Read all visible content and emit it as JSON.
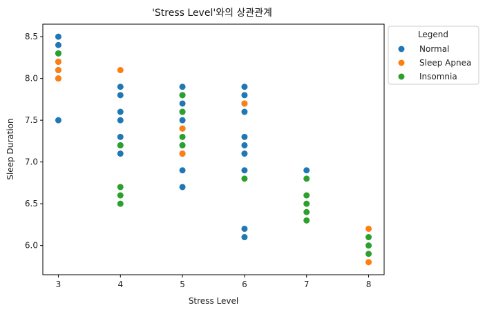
{
  "chart_data": {
    "type": "scatter",
    "title": "'Stress Level'와의 상관관계",
    "xlabel": "Stress Level",
    "ylabel": "Sleep Duration",
    "xlim": [
      2.75,
      8.25
    ],
    "ylim": [
      5.65,
      8.65
    ],
    "xticks": [
      3,
      4,
      5,
      6,
      7,
      8
    ],
    "yticks": [
      6.0,
      6.5,
      7.0,
      7.5,
      8.0,
      8.5
    ],
    "ytick_labels": [
      "6.0",
      "6.5",
      "7.0",
      "7.5",
      "8.0",
      "8.5"
    ],
    "legend": {
      "title": "Legend",
      "placement": "outside-right-top",
      "entries": [
        "Normal",
        "Sleep Apnea",
        "Insomnia"
      ]
    },
    "series": [
      {
        "name": "Normal",
        "color": "#1f77b4",
        "points": [
          [
            3,
            8.5
          ],
          [
            3,
            8.4
          ],
          [
            3,
            8.3
          ],
          [
            3,
            8.2
          ],
          [
            3,
            8.1
          ],
          [
            3,
            8.0
          ],
          [
            3,
            7.5
          ],
          [
            4,
            7.9
          ],
          [
            4,
            7.8
          ],
          [
            4,
            7.6
          ],
          [
            4,
            7.5
          ],
          [
            4,
            7.3
          ],
          [
            4,
            7.2
          ],
          [
            4,
            7.1
          ],
          [
            5,
            7.9
          ],
          [
            5,
            7.8
          ],
          [
            5,
            7.7
          ],
          [
            5,
            7.6
          ],
          [
            5,
            7.5
          ],
          [
            5,
            7.4
          ],
          [
            5,
            7.2
          ],
          [
            5,
            7.1
          ],
          [
            5,
            6.9
          ],
          [
            5,
            6.7
          ],
          [
            6,
            7.9
          ],
          [
            6,
            7.8
          ],
          [
            6,
            7.7
          ],
          [
            6,
            7.6
          ],
          [
            6,
            7.3
          ],
          [
            6,
            7.2
          ],
          [
            6,
            7.1
          ],
          [
            6,
            6.9
          ],
          [
            6,
            6.2
          ],
          [
            6,
            6.1
          ],
          [
            7,
            6.9
          ]
        ]
      },
      {
        "name": "Sleep Apnea",
        "color": "#ff7f0e",
        "points": [
          [
            3,
            8.2
          ],
          [
            3,
            8.1
          ],
          [
            3,
            8.0
          ],
          [
            4,
            8.1
          ],
          [
            5,
            7.4
          ],
          [
            5,
            7.1
          ],
          [
            6,
            7.7
          ],
          [
            8,
            6.2
          ],
          [
            8,
            5.8
          ]
        ]
      },
      {
        "name": "Insomnia",
        "color": "#2ca02c",
        "points": [
          [
            3,
            8.3
          ],
          [
            4,
            7.2
          ],
          [
            4,
            6.7
          ],
          [
            4,
            6.6
          ],
          [
            4,
            6.5
          ],
          [
            5,
            7.8
          ],
          [
            5,
            7.6
          ],
          [
            5,
            7.3
          ],
          [
            5,
            7.2
          ],
          [
            6,
            6.8
          ],
          [
            7,
            6.8
          ],
          [
            7,
            6.6
          ],
          [
            7,
            6.5
          ],
          [
            7,
            6.4
          ],
          [
            7,
            6.3
          ],
          [
            8,
            6.1
          ],
          [
            8,
            6.0
          ],
          [
            8,
            5.9
          ]
        ]
      }
    ]
  }
}
